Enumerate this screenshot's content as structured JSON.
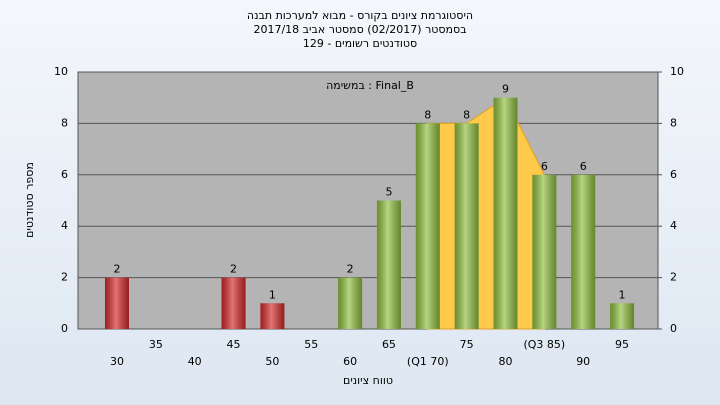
{
  "chart_data": {
    "type": "bar",
    "title": "היסטוגרמת ציונים בקורס - מבוא למערכות תבנה",
    "subtitle": "בסמסטר  (02/2017)  סמסטר אביב 2017/18",
    "subtitle2": "סטודנטים רשומים - 129",
    "annotation": "במשימה : Final_B",
    "y_label": "מספר סטודנטים",
    "x_label": "טווח ציונים",
    "categories": [
      "30",
      "35",
      "40",
      "45",
      "50",
      "55",
      "60",
      "65",
      "(Q1 70)",
      "75",
      "80",
      "(Q3 85)",
      "90",
      "95"
    ],
    "values": [
      2,
      0,
      0,
      2,
      1,
      0,
      2,
      5,
      8,
      8,
      9,
      6,
      6,
      1
    ],
    "colors": [
      "#d42a2a",
      "#d42a2a",
      "#d42a2a",
      "#d42a2a",
      "#d42a2a",
      "#8fbf3f",
      "#8fbf3f",
      "#8fbf3f",
      "#8fbf3f",
      "#8fbf3f",
      "#8fbf3f",
      "#8fbf3f",
      "#8fbf3f",
      "#8fbf3f"
    ],
    "ylim": [
      0,
      10
    ],
    "yticks": [
      0,
      2,
      4,
      6,
      8,
      10
    ],
    "y2lim": [
      0,
      10
    ],
    "y2ticks": [
      0,
      2,
      4,
      6,
      8,
      10
    ],
    "grid": true
  }
}
